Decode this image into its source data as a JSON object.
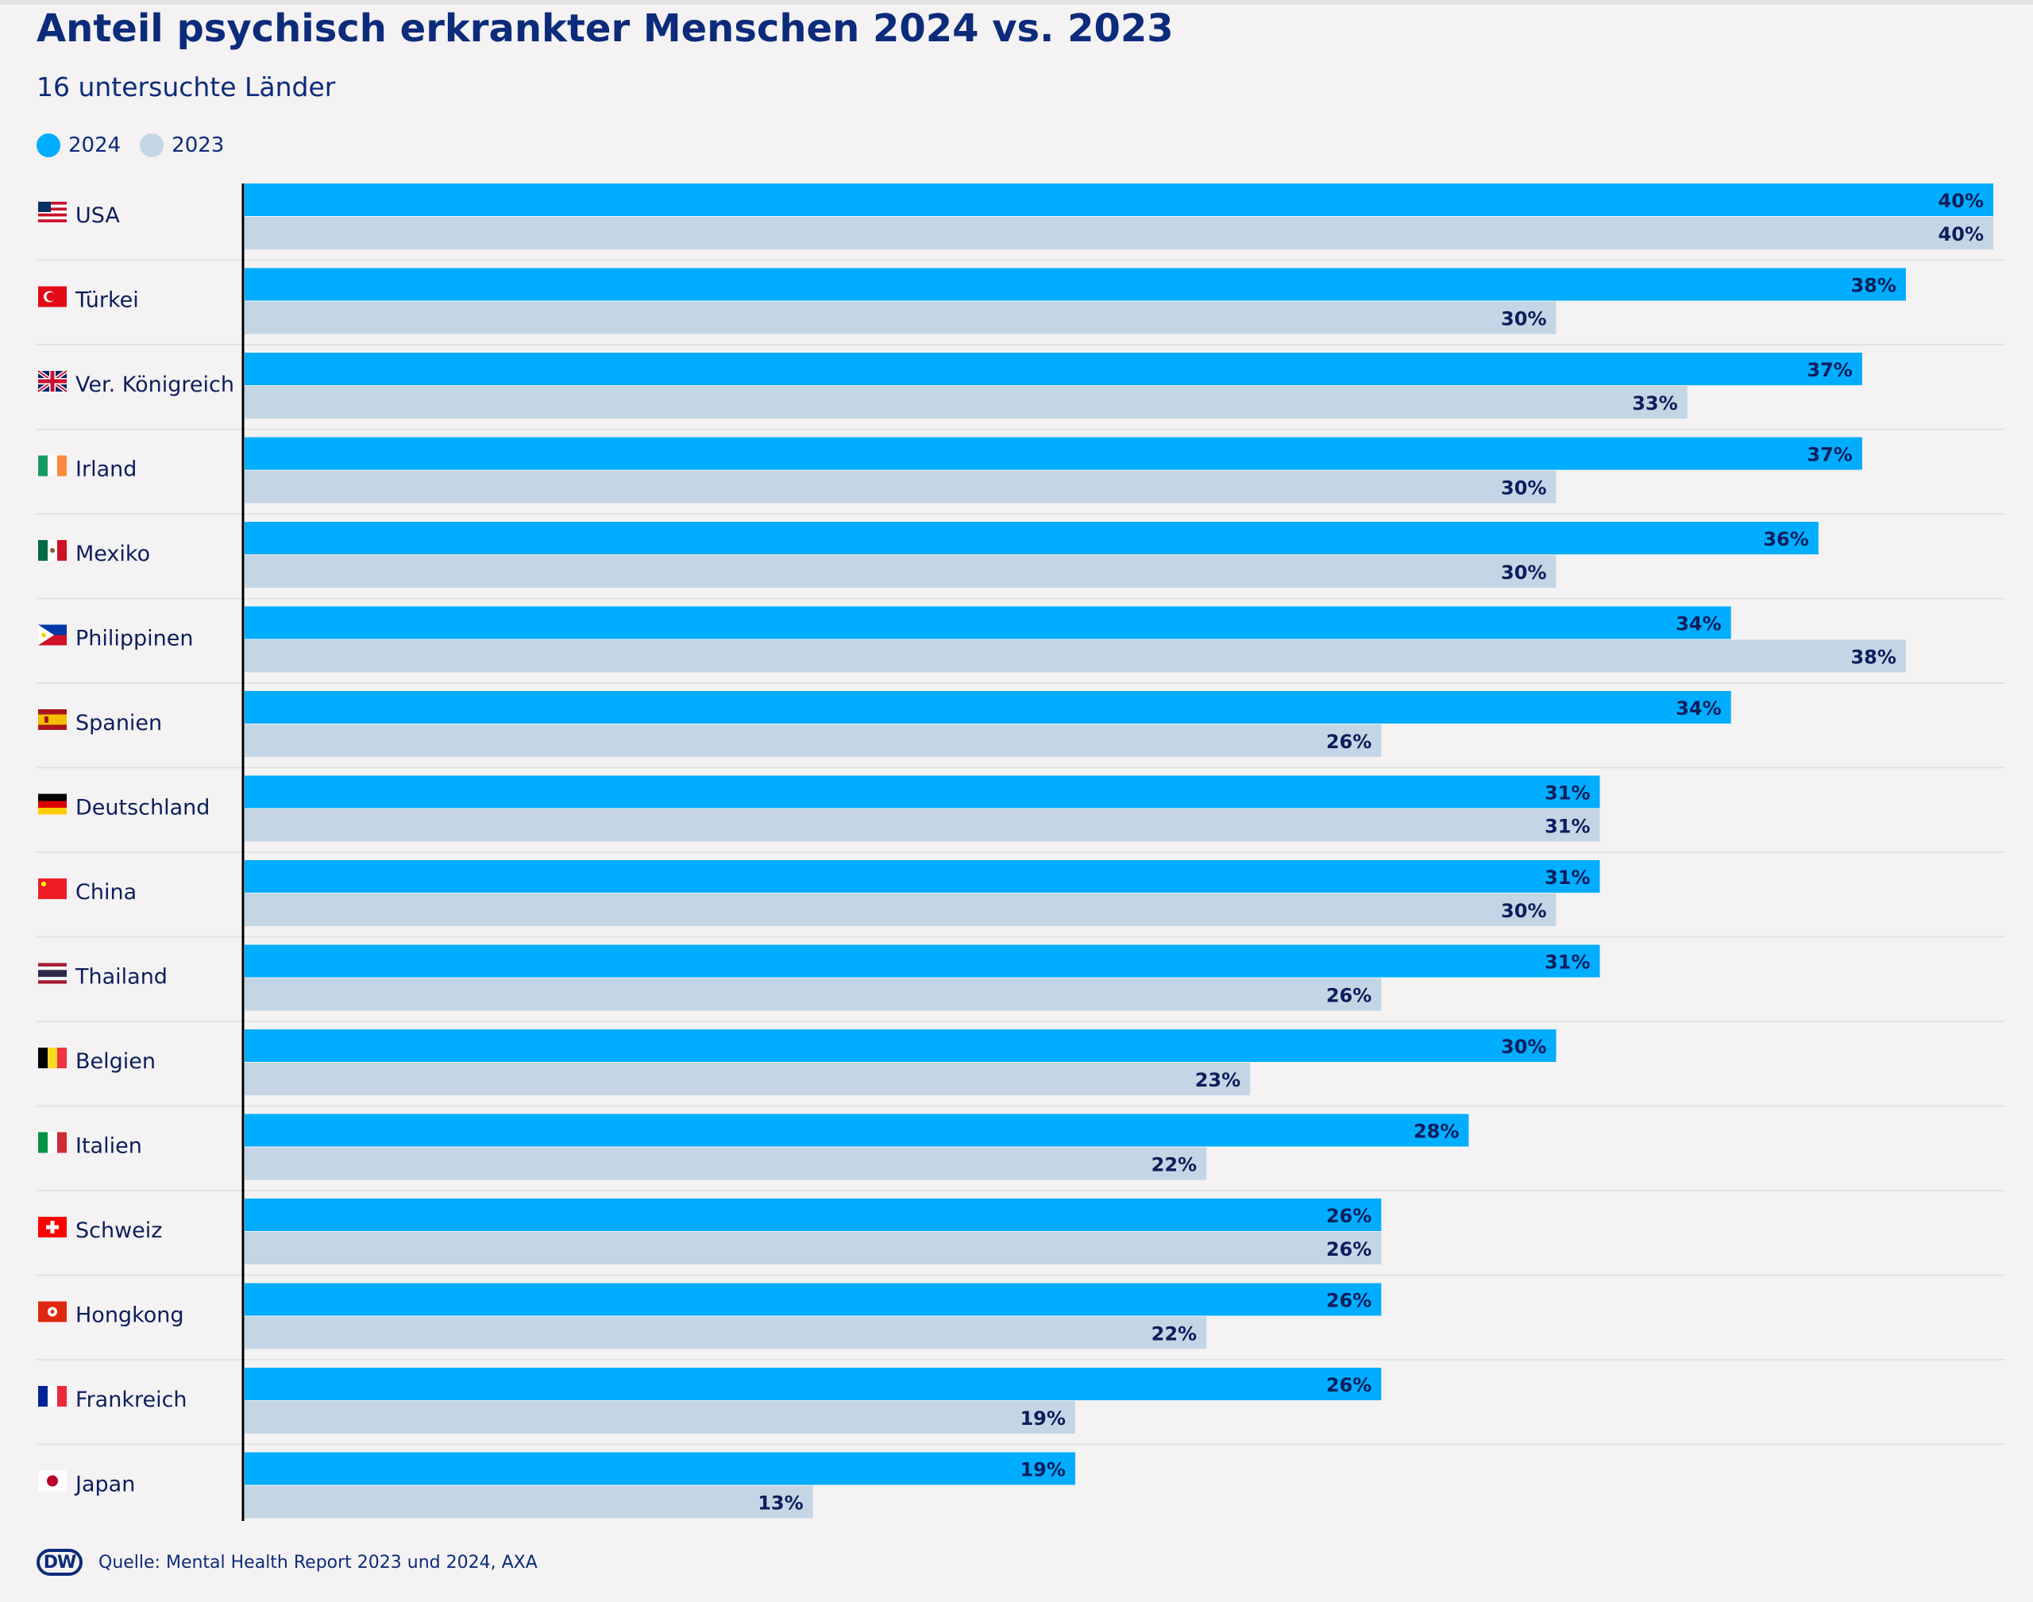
{
  "title": "Anteil psychisch erkrankter Menschen 2024 vs. 2023",
  "subtitle": "16 untersuchte Länder",
  "legend": [
    {
      "label": "2024",
      "color": "#00adff"
    },
    {
      "label": "2023",
      "color": "#c4d6e5"
    }
  ],
  "footer": {
    "logo": "DW",
    "source": "Quelle: Mental Health Report 2023 und 2024, AXA"
  },
  "chart_data": {
    "type": "bar",
    "orientation": "horizontal",
    "categories": [
      "USA",
      "Türkei",
      "Ver. Königreich",
      "Irland",
      "Mexiko",
      "Philippinen",
      "Spanien",
      "Deutschland",
      "China",
      "Thailand",
      "Belgien",
      "Italien",
      "Schweiz",
      "Hongkong",
      "Frankreich",
      "Japan"
    ],
    "flags": [
      "us-flag-icon",
      "turkey-flag-icon",
      "uk-flag-icon",
      "ireland-flag-icon",
      "mexico-flag-icon",
      "philippines-flag-icon",
      "spain-flag-icon",
      "germany-flag-icon",
      "china-flag-icon",
      "thailand-flag-icon",
      "belgium-flag-icon",
      "italy-flag-icon",
      "switzerland-flag-icon",
      "hongkong-flag-icon",
      "france-flag-icon",
      "japan-flag-icon"
    ],
    "series": [
      {
        "name": "2024",
        "color": "#00adff",
        "values": [
          40,
          38,
          37,
          37,
          36,
          34,
          34,
          31,
          31,
          31,
          30,
          28,
          26,
          26,
          26,
          19
        ]
      },
      {
        "name": "2023",
        "color": "#c4d6e5",
        "values": [
          40,
          30,
          33,
          30,
          30,
          38,
          26,
          31,
          30,
          26,
          23,
          22,
          26,
          22,
          19,
          13
        ]
      }
    ],
    "value_suffix": "%",
    "xlim": [
      0,
      40
    ],
    "grid": false,
    "legend_position": "top-left"
  }
}
